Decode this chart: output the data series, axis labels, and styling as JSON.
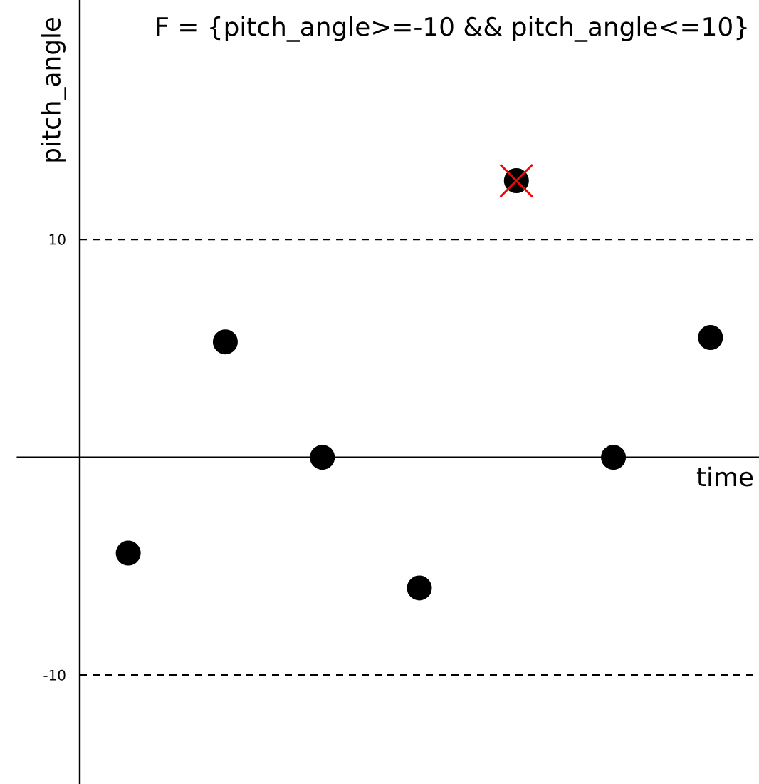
{
  "chart_data": {
    "type": "scatter",
    "title": "F = {pitch_angle>=-10 && pitch_angle<=10}",
    "xlabel": "time",
    "ylabel": "pitch_angle",
    "categories": [
      null,
      null,
      null,
      null,
      null,
      null,
      null
    ],
    "series": [
      {
        "color": "#000000",
        "marker": "circle",
        "values": [
          -4.4,
          5.3,
          0,
          -6,
          12.7,
          0,
          5.5
        ]
      },
      {
        "color": "#ff0000",
        "marker": "cross",
        "values": [
          null,
          null,
          null,
          null,
          12.7,
          null,
          null
        ]
      }
    ],
    "ylim": [
      -15,
      21
    ],
    "yticks": [
      10,
      -10
    ],
    "tick_labels": "y",
    "ref_lines": [
      {
        "axis": "y",
        "value": 10,
        "color": "#000000",
        "line_style": "dashed"
      },
      {
        "axis": "y",
        "value": -10,
        "color": "#000000",
        "line_style": "dashed"
      }
    ]
  }
}
